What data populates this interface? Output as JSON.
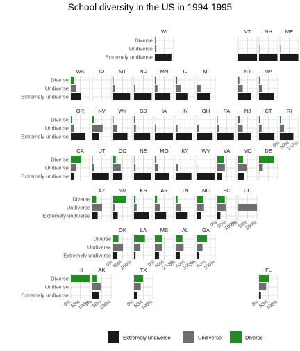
{
  "chart_data": {
    "type": "bar",
    "title": "School diversity in the US in 1994-1995",
    "orientation": "horizontal",
    "layout": "geofacet (US state grid)",
    "categories": [
      "Diverse",
      "Undiverse",
      "Extremely undiverse"
    ],
    "x_axis": {
      "ticks": [
        "0%",
        "50%",
        "100%"
      ],
      "range": [
        0,
        100
      ],
      "unit": "%"
    },
    "grid": true,
    "legend": {
      "position": "bottom",
      "entries": [
        "Extremely undiverse",
        "Undiverse",
        "Diverse"
      ]
    },
    "colors": {
      "Extremely undiverse": "#1a1a1a",
      "Undiverse": "#6e6e6e",
      "Diverse": "#238b23"
    },
    "panels": [
      {
        "state": "WI",
        "row": 0,
        "col": 6,
        "values": [
          3,
          8,
          88
        ]
      },
      {
        "state": "VT",
        "row": 0,
        "col": 10,
        "values": [
          0,
          0,
          100
        ]
      },
      {
        "state": "NH",
        "row": 0,
        "col": 11,
        "values": [
          0,
          2,
          98
        ]
      },
      {
        "state": "ME",
        "row": 0,
        "col": 12,
        "values": [
          0,
          2,
          98
        ]
      },
      {
        "state": "WA",
        "row": 1,
        "col": 2,
        "values": [
          18,
          28,
          54
        ]
      },
      {
        "state": "ID",
        "row": 1,
        "col": 3,
        "values": [
          0,
          0,
          0
        ]
      },
      {
        "state": "MT",
        "row": 1,
        "col": 4,
        "values": [
          2,
          8,
          90
        ]
      },
      {
        "state": "ND",
        "row": 1,
        "col": 5,
        "values": [
          0,
          6,
          94
        ]
      },
      {
        "state": "MN",
        "row": 1,
        "col": 6,
        "values": [
          4,
          14,
          82
        ]
      },
      {
        "state": "IL",
        "row": 1,
        "col": 7,
        "values": [
          8,
          26,
          66
        ]
      },
      {
        "state": "MI",
        "row": 1,
        "col": 8,
        "values": [
          4,
          22,
          74
        ]
      },
      {
        "state": "NY",
        "row": 1,
        "col": 10,
        "values": [
          6,
          24,
          70
        ]
      },
      {
        "state": "MA",
        "row": 1,
        "col": 11,
        "values": [
          4,
          18,
          78
        ]
      },
      {
        "state": "OR",
        "row": 2,
        "col": 2,
        "values": [
          4,
          18,
          78
        ]
      },
      {
        "state": "NV",
        "row": 2,
        "col": 3,
        "values": [
          10,
          55,
          35
        ]
      },
      {
        "state": "WY",
        "row": 2,
        "col": 4,
        "values": [
          2,
          22,
          76
        ]
      },
      {
        "state": "SD",
        "row": 2,
        "col": 5,
        "values": [
          4,
          10,
          86
        ]
      },
      {
        "state": "IA",
        "row": 2,
        "col": 6,
        "values": [
          0,
          4,
          96
        ]
      },
      {
        "state": "IN",
        "row": 2,
        "col": 7,
        "values": [
          2,
          10,
          88
        ]
      },
      {
        "state": "OH",
        "row": 2,
        "col": 8,
        "values": [
          2,
          12,
          86
        ]
      },
      {
        "state": "PA",
        "row": 2,
        "col": 9,
        "values": [
          2,
          10,
          88
        ]
      },
      {
        "state": "NJ",
        "row": 2,
        "col": 10,
        "values": [
          8,
          24,
          68
        ]
      },
      {
        "state": "CT",
        "row": 2,
        "col": 11,
        "values": [
          4,
          14,
          82
        ]
      },
      {
        "state": "RI",
        "row": 2,
        "col": 12,
        "values": [
          6,
          22,
          72
        ]
      },
      {
        "state": "CA",
        "row": 3,
        "col": 2,
        "values": [
          55,
          30,
          15
        ]
      },
      {
        "state": "UT",
        "row": 3,
        "col": 3,
        "values": [
          2,
          10,
          88
        ]
      },
      {
        "state": "CO",
        "row": 3,
        "col": 4,
        "values": [
          14,
          40,
          46
        ]
      },
      {
        "state": "NE",
        "row": 3,
        "col": 5,
        "values": [
          2,
          8,
          90
        ]
      },
      {
        "state": "MO",
        "row": 3,
        "col": 6,
        "values": [
          6,
          18,
          76
        ]
      },
      {
        "state": "KY",
        "row": 3,
        "col": 7,
        "values": [
          2,
          14,
          84
        ]
      },
      {
        "state": "WV",
        "row": 3,
        "col": 8,
        "values": [
          0,
          4,
          96
        ]
      },
      {
        "state": "VA",
        "row": 3,
        "col": 9,
        "values": [
          34,
          40,
          26
        ]
      },
      {
        "state": "MD",
        "row": 3,
        "col": 10,
        "values": [
          26,
          44,
          30
        ]
      },
      {
        "state": "DE",
        "row": 3,
        "col": 11,
        "values": [
          80,
          20,
          0
        ]
      },
      {
        "state": "AZ",
        "row": 4,
        "col": 3,
        "values": [
          20,
          52,
          28
        ]
      },
      {
        "state": "NM",
        "row": 4,
        "col": 4,
        "values": [
          68,
          8,
          24
        ]
      },
      {
        "state": "KS",
        "row": 4,
        "col": 5,
        "values": [
          8,
          14,
          78
        ]
      },
      {
        "state": "AR",
        "row": 4,
        "col": 6,
        "values": [
          12,
          28,
          60
        ]
      },
      {
        "state": "TN",
        "row": 4,
        "col": 7,
        "values": [
          10,
          26,
          64
        ]
      },
      {
        "state": "NC",
        "row": 4,
        "col": 8,
        "values": [
          36,
          40,
          24
        ]
      },
      {
        "state": "SC",
        "row": 4,
        "col": 9,
        "values": [
          40,
          44,
          16
        ]
      },
      {
        "state": "DC",
        "row": 4,
        "col": 10,
        "values": [
          0,
          100,
          0
        ]
      },
      {
        "state": "OK",
        "row": 5,
        "col": 4,
        "values": [
          28,
          52,
          20
        ]
      },
      {
        "state": "LA",
        "row": 5,
        "col": 5,
        "values": [
          58,
          34,
          8
        ]
      },
      {
        "state": "MS",
        "row": 5,
        "col": 6,
        "values": [
          40,
          38,
          22
        ]
      },
      {
        "state": "AL",
        "row": 5,
        "col": 7,
        "values": [
          36,
          42,
          22
        ]
      },
      {
        "state": "GA",
        "row": 5,
        "col": 8,
        "values": [
          56,
          32,
          12
        ]
      },
      {
        "state": "HI",
        "row": 6,
        "col": 2,
        "values": [
          100,
          0,
          0
        ]
      },
      {
        "state": "AK",
        "row": 6,
        "col": 3,
        "values": [
          22,
          44,
          34
        ]
      },
      {
        "state": "TX",
        "row": 6,
        "col": 5,
        "values": [
          48,
          36,
          16
        ]
      },
      {
        "state": "FL",
        "row": 6,
        "col": 11,
        "values": [
          52,
          38,
          10
        ]
      }
    ]
  }
}
